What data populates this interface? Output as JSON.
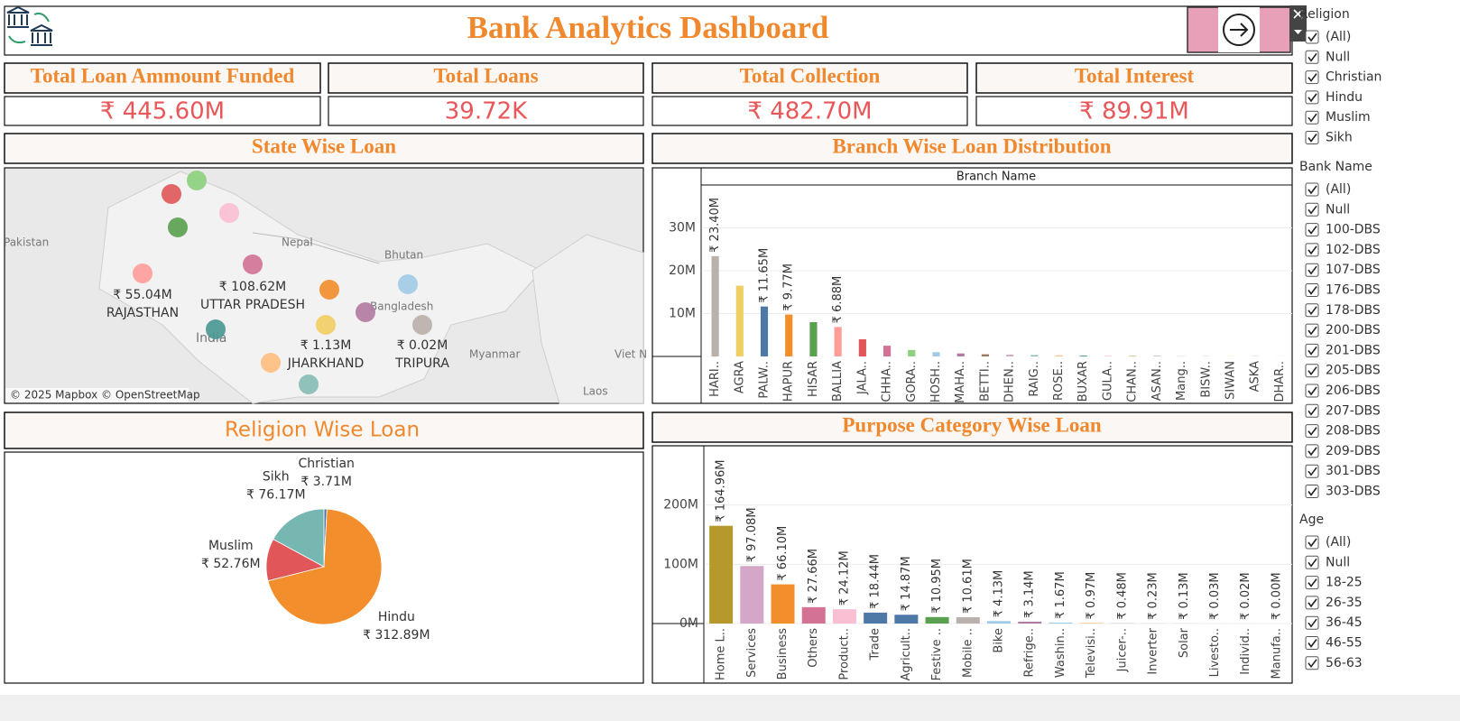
{
  "header": {
    "title": "Bank Analytics Dashboard"
  },
  "kpis": [
    {
      "label": "Total Loan Ammount Funded",
      "value": "₹ 445.60M"
    },
    {
      "label": "Total Loans",
      "value": "39.72K"
    },
    {
      "label": "Total Collection",
      "value": "₹ 482.70M"
    },
    {
      "label": "Total Interest",
      "value": "₹ 89.91M"
    }
  ],
  "map": {
    "title": "State Wise Loan",
    "places": [
      "Pakistan",
      "Nepal",
      "Bhutan",
      "Bangladesh",
      "India",
      "Myanmar",
      "Viet N",
      "Laos"
    ],
    "states": [
      {
        "value": "₹ 55.04M",
        "name": "RAJASTHAN"
      },
      {
        "value": "₹ 108.62M",
        "name": "UTTAR PRADESH"
      },
      {
        "value": "₹ 1.13M",
        "name": "JHARKHAND"
      },
      {
        "value": "₹ 0.02M",
        "name": "TRIPURA"
      }
    ],
    "attribution": "© 2025 Mapbox © OpenStreetMap"
  },
  "chart_data": [
    {
      "type": "bar",
      "title": "Branch Wise Loan Distribution",
      "x_label": "Branch Name",
      "categories": [
        "HARI..",
        "AGRA",
        "PALW..",
        "HAPUR",
        "HISAR",
        "BALLIA",
        "JALA..",
        "CHHA..",
        "GORA..",
        "HOSH..",
        "MAHA..",
        "BETTI..",
        "DHEN..",
        "RAIG..",
        "ROSE..",
        "BUXAR",
        "GULA..",
        "CHAN..",
        "ASAN..",
        "Mang..",
        "BISW..",
        "SIWAN",
        "ASKA",
        "DHAR.."
      ],
      "values": [
        23.4,
        16.5,
        11.65,
        9.77,
        8.0,
        6.88,
        4.0,
        2.5,
        1.5,
        1.0,
        0.7,
        0.5,
        0.4,
        0.3,
        0.25,
        0.2,
        0.15,
        0.1,
        0.08,
        0.06,
        0.05,
        0.04,
        0.03,
        0.02
      ],
      "value_labels": [
        "₹ 23.40M",
        null,
        "₹ 11.65M",
        "₹ 9.77M",
        null,
        "₹ 6.88M",
        null,
        null,
        null,
        null,
        null,
        null,
        null,
        null,
        null,
        null,
        null,
        null,
        null,
        null,
        null,
        null,
        null,
        null
      ],
      "colors": [
        "#bab0ac",
        "#f1ce63",
        "#4e79a7",
        "#f28e2b",
        "#59a14f",
        "#ff9d9a",
        "#e15759",
        "#d37295",
        "#8cd17d",
        "#a0cbe8",
        "#b07aa1",
        "#9d7660",
        "#d4a6c8",
        "#86bcb6",
        "#ffbe7d",
        "#499894",
        "#fabfd2",
        "#b6992d",
        "#79706e",
        "#d7b5a6",
        "#bab0ac",
        "#f1ce63",
        "#4e79a7",
        "#f28e2b"
      ],
      "ylim": [
        0,
        40
      ],
      "yticks": [
        {
          "value": 10,
          "label": "10M"
        },
        {
          "value": 20,
          "label": "20M"
        },
        {
          "value": 30,
          "label": "30M"
        }
      ],
      "grid": true
    },
    {
      "type": "pie",
      "title": "Religion Wise Loan",
      "categories": [
        "Christian",
        "Hindu",
        "Muslim",
        "Sikh"
      ],
      "values": [
        3.71,
        312.89,
        52.76,
        76.17
      ],
      "value_labels": [
        "₹ 3.71M",
        "₹ 312.89M",
        "₹ 52.76M",
        "₹ 76.17M"
      ],
      "colors": [
        "#4e79a7",
        "#f28e2b",
        "#e15759",
        "#76b7b2"
      ]
    },
    {
      "type": "bar",
      "title": "Purpose Category Wise Loan",
      "categories": [
        "Home L..",
        "Services",
        "Business",
        "Others",
        "Product..",
        "Trade",
        "Agricult..",
        "Festive ..",
        "Mobile ..",
        "Bike",
        "Refrige..",
        "Washin..",
        "Televisi..",
        "Juicer-..",
        "Inverter",
        "Solar",
        "Livesto..",
        "Individ..",
        "Manufa.."
      ],
      "values": [
        164.96,
        97.08,
        66.1,
        27.66,
        24.12,
        18.44,
        14.87,
        10.95,
        10.61,
        4.13,
        3.14,
        1.67,
        0.97,
        0.48,
        0.23,
        0.13,
        0.03,
        0.02,
        0.0
      ],
      "value_labels": [
        "₹ 164.96M",
        "₹ 97.08M",
        "₹ 66.10M",
        "₹ 27.66M",
        "₹ 24.12M",
        "₹ 18.44M",
        "₹ 14.87M",
        "₹ 10.95M",
        "₹ 10.61M",
        "₹ 4.13M",
        "₹ 3.14M",
        "₹ 1.67M",
        "₹ 0.97M",
        "₹ 0.48M",
        "₹ 0.23M",
        "₹ 0.13M",
        "₹ 0.03M",
        "₹ 0.02M",
        "₹ 0.00M"
      ],
      "colors": [
        "#b6992d",
        "#d4a6c8",
        "#f28e2b",
        "#d37295",
        "#fabfd2",
        "#4e79a7",
        "#4e79a7",
        "#59a14f",
        "#bab0ac",
        "#a0cbe8",
        "#b07aa1",
        "#a0cbe8",
        "#ffbe7d",
        "#bab0ac",
        "#bab0ac",
        "#bab0ac",
        "#bab0ac",
        "#bab0ac",
        "#bab0ac"
      ],
      "ylim": [
        0,
        300
      ],
      "yticks": [
        {
          "value": 0,
          "label": "0M"
        },
        {
          "value": 100,
          "label": "100M"
        },
        {
          "value": 200,
          "label": "200M"
        }
      ],
      "grid": true
    }
  ],
  "filters": [
    {
      "title": "Religion",
      "options": [
        "(All)",
        "Null",
        "Christian",
        "Hindu",
        "Muslim",
        "Sikh"
      ]
    },
    {
      "title": "Bank Name",
      "options": [
        "(All)",
        "Null",
        "100-DBS",
        "102-DBS",
        "107-DBS",
        "176-DBS",
        "178-DBS",
        "200-DBS",
        "201-DBS",
        "205-DBS",
        "206-DBS",
        "207-DBS",
        "208-DBS",
        "209-DBS",
        "301-DBS",
        "303-DBS"
      ]
    },
    {
      "title": "Age",
      "options": [
        "(All)",
        "Null",
        "18-25",
        "26-35",
        "36-45",
        "46-55",
        "56-63"
      ]
    }
  ]
}
